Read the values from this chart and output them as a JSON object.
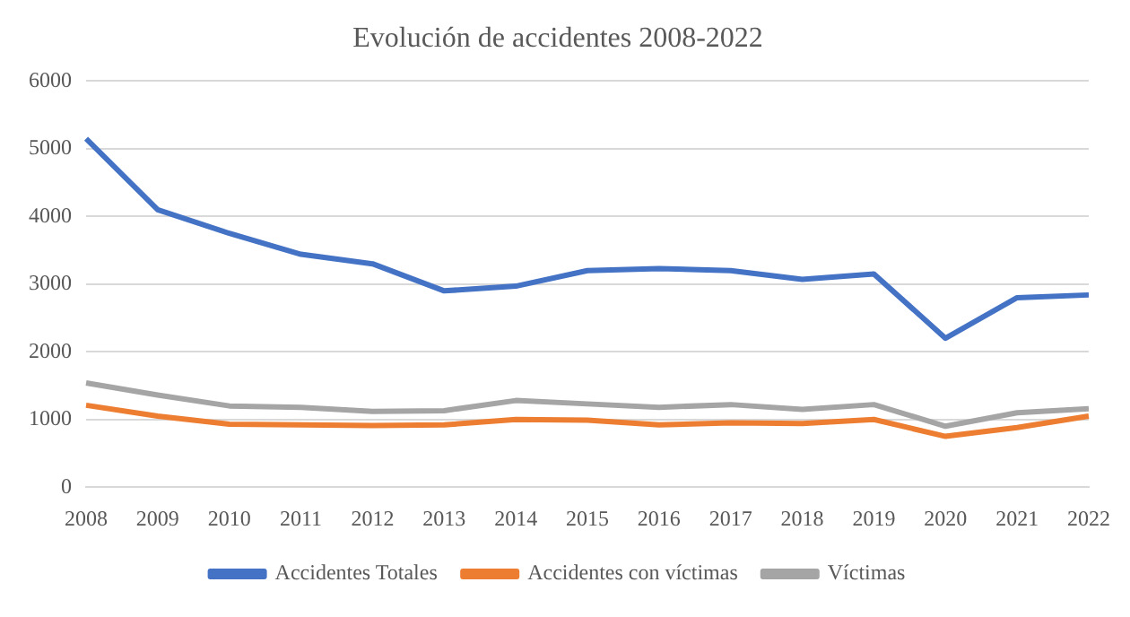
{
  "chart_data": {
    "type": "line",
    "title": "Evolución de accidentes 2008-2022",
    "categories": [
      "2008",
      "2009",
      "2010",
      "2011",
      "2012",
      "2013",
      "2014",
      "2015",
      "2016",
      "2017",
      "2018",
      "2019",
      "2020",
      "2021",
      "2022"
    ],
    "series": [
      {
        "name": "Accidentes Totales",
        "color": "#4472c4",
        "values": [
          5150,
          4100,
          3750,
          3440,
          3300,
          2900,
          2970,
          3200,
          3230,
          3200,
          3070,
          3150,
          2200,
          2800,
          2840
        ]
      },
      {
        "name": "Accidentes con víctimas",
        "color": "#ed7d31",
        "values": [
          1210,
          1050,
          930,
          920,
          910,
          920,
          1000,
          990,
          920,
          950,
          940,
          1000,
          750,
          880,
          1050
        ]
      },
      {
        "name": "Víctimas",
        "color": "#a5a5a5",
        "values": [
          1540,
          1360,
          1200,
          1180,
          1120,
          1130,
          1280,
          1230,
          1180,
          1220,
          1150,
          1220,
          900,
          1100,
          1160
        ]
      }
    ],
    "ylim": [
      0,
      6000
    ],
    "yticks": [
      0,
      1000,
      2000,
      3000,
      4000,
      5000,
      6000
    ],
    "grid": "y",
    "legend": "bottom",
    "marker": "none",
    "line_style": "solid"
  }
}
